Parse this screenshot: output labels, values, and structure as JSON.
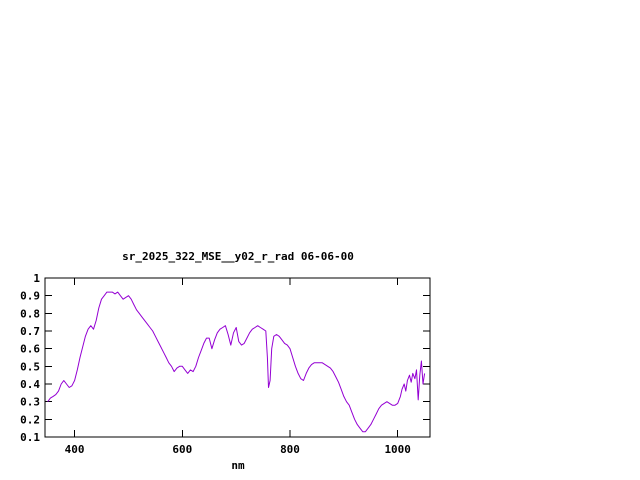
{
  "page": {
    "background": "#ffffff"
  },
  "chart_data": {
    "type": "line",
    "title": "sr_2025_322_MSE__y02_r_rad 06-06-00",
    "xlabel": "nm",
    "ylabel": "",
    "xlim": [
      345,
      1060
    ],
    "ylim": [
      0.1,
      1.0
    ],
    "xticks": [
      400,
      600,
      800,
      1000
    ],
    "yticks": [
      0.1,
      0.2,
      0.3,
      0.4,
      0.5,
      0.6,
      0.7,
      0.8,
      0.9,
      1
    ],
    "grid": false,
    "legend": "none",
    "line_color": "#9400d3",
    "axis_color": "#000000",
    "series": [
      {
        "name": "sr_2025_322_MSE__y02_r_rad",
        "x": [
          350,
          355,
          360,
          365,
          370,
          375,
          380,
          385,
          390,
          395,
          400,
          405,
          410,
          415,
          420,
          425,
          430,
          435,
          440,
          445,
          450,
          455,
          460,
          465,
          470,
          475,
          480,
          485,
          490,
          495,
          500,
          505,
          510,
          515,
          520,
          525,
          530,
          535,
          540,
          545,
          550,
          555,
          560,
          565,
          570,
          575,
          580,
          585,
          590,
          595,
          600,
          605,
          610,
          615,
          620,
          625,
          630,
          635,
          640,
          645,
          650,
          655,
          660,
          665,
          670,
          675,
          680,
          685,
          690,
          695,
          700,
          705,
          710,
          715,
          720,
          725,
          730,
          735,
          740,
          745,
          750,
          755,
          758,
          760,
          763,
          766,
          770,
          775,
          780,
          785,
          790,
          795,
          800,
          805,
          810,
          815,
          820,
          825,
          830,
          835,
          840,
          845,
          850,
          855,
          860,
          865,
          870,
          875,
          880,
          885,
          890,
          895,
          900,
          905,
          910,
          915,
          920,
          925,
          930,
          935,
          940,
          945,
          950,
          955,
          960,
          965,
          970,
          975,
          980,
          985,
          990,
          995,
          1000,
          1005,
          1008,
          1012,
          1015,
          1018,
          1022,
          1025,
          1028,
          1032,
          1035,
          1038,
          1041,
          1044,
          1047,
          1050
        ],
        "y": [
          0.3,
          0.32,
          0.33,
          0.34,
          0.36,
          0.4,
          0.42,
          0.4,
          0.38,
          0.39,
          0.42,
          0.48,
          0.55,
          0.61,
          0.67,
          0.71,
          0.73,
          0.71,
          0.76,
          0.83,
          0.88,
          0.9,
          0.92,
          0.92,
          0.92,
          0.91,
          0.92,
          0.9,
          0.88,
          0.89,
          0.9,
          0.88,
          0.85,
          0.82,
          0.8,
          0.78,
          0.76,
          0.74,
          0.72,
          0.7,
          0.67,
          0.64,
          0.61,
          0.58,
          0.55,
          0.52,
          0.5,
          0.47,
          0.49,
          0.5,
          0.5,
          0.48,
          0.46,
          0.48,
          0.47,
          0.5,
          0.55,
          0.59,
          0.63,
          0.66,
          0.66,
          0.6,
          0.65,
          0.69,
          0.71,
          0.72,
          0.73,
          0.68,
          0.62,
          0.69,
          0.72,
          0.64,
          0.62,
          0.63,
          0.66,
          0.69,
          0.71,
          0.72,
          0.73,
          0.72,
          0.71,
          0.7,
          0.55,
          0.38,
          0.42,
          0.6,
          0.67,
          0.68,
          0.67,
          0.65,
          0.63,
          0.62,
          0.6,
          0.55,
          0.5,
          0.46,
          0.43,
          0.42,
          0.46,
          0.49,
          0.51,
          0.52,
          0.52,
          0.52,
          0.52,
          0.51,
          0.5,
          0.49,
          0.47,
          0.44,
          0.41,
          0.37,
          0.33,
          0.3,
          0.28,
          0.24,
          0.2,
          0.17,
          0.15,
          0.13,
          0.13,
          0.15,
          0.17,
          0.2,
          0.23,
          0.26,
          0.28,
          0.29,
          0.3,
          0.29,
          0.28,
          0.28,
          0.29,
          0.33,
          0.37,
          0.4,
          0.36,
          0.42,
          0.45,
          0.41,
          0.46,
          0.43,
          0.48,
          0.31,
          0.45,
          0.53,
          0.4,
          0.46
        ]
      }
    ]
  }
}
